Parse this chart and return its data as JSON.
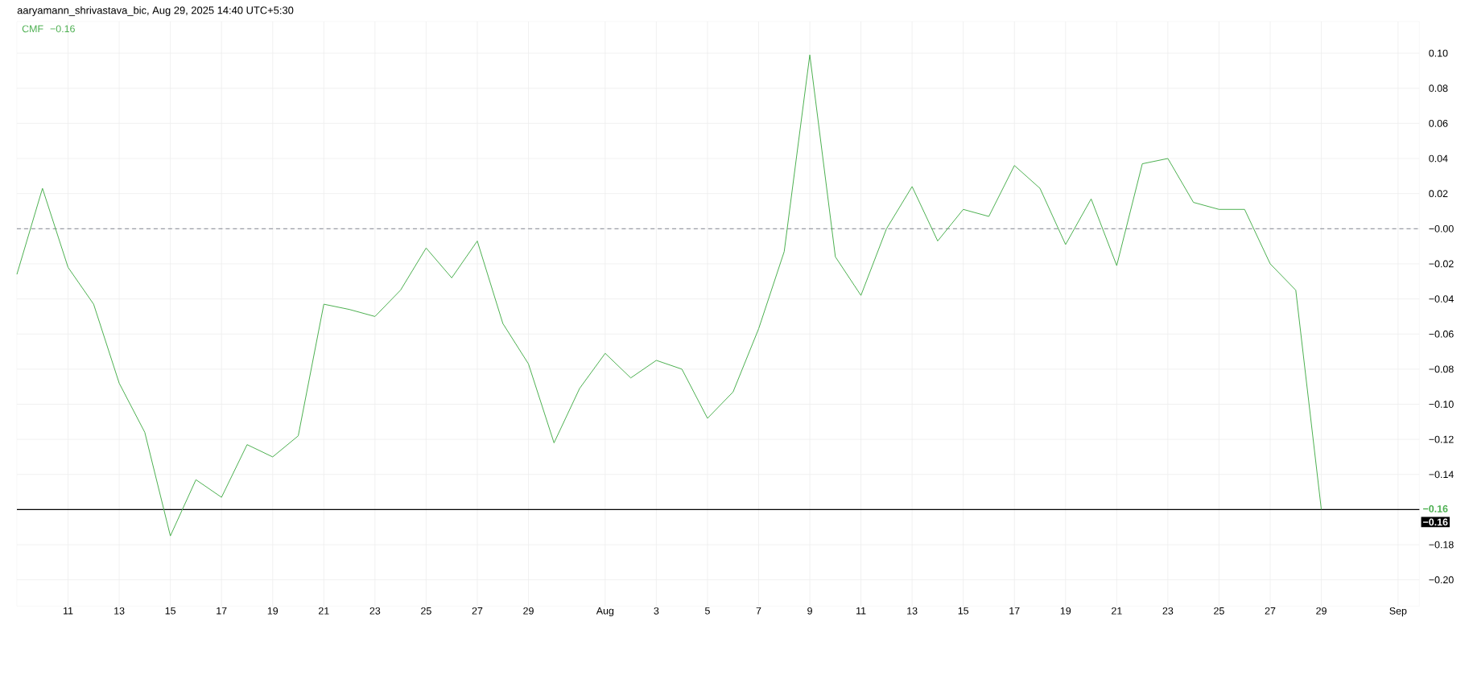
{
  "chart_data": {
    "type": "line",
    "title": "aaryamann_shrivastava_bic, Aug 29, 2025 14:40 UTC+5:30",
    "x": [
      "2025-07-09",
      "2025-07-10",
      "2025-07-11",
      "2025-07-12",
      "2025-07-13",
      "2025-07-14",
      "2025-07-15",
      "2025-07-16",
      "2025-07-17",
      "2025-07-18",
      "2025-07-19",
      "2025-07-20",
      "2025-07-21",
      "2025-07-22",
      "2025-07-23",
      "2025-07-24",
      "2025-07-25",
      "2025-07-26",
      "2025-07-27",
      "2025-07-28",
      "2025-07-29",
      "2025-07-30",
      "2025-07-31",
      "2025-08-01",
      "2025-08-02",
      "2025-08-03",
      "2025-08-04",
      "2025-08-05",
      "2025-08-06",
      "2025-08-07",
      "2025-08-08",
      "2025-08-09",
      "2025-08-10",
      "2025-08-11",
      "2025-08-12",
      "2025-08-13",
      "2025-08-14",
      "2025-08-15",
      "2025-08-16",
      "2025-08-17",
      "2025-08-18",
      "2025-08-19",
      "2025-08-20",
      "2025-08-21",
      "2025-08-22",
      "2025-08-23",
      "2025-08-24",
      "2025-08-25",
      "2025-08-26",
      "2025-08-27",
      "2025-08-28",
      "2025-08-29"
    ],
    "series": [
      {
        "name": "CMF",
        "color": "#4caf50",
        "values": [
          -0.026,
          0.023,
          -0.022,
          -0.043,
          -0.088,
          -0.116,
          -0.175,
          -0.143,
          -0.153,
          -0.123,
          -0.13,
          -0.118,
          -0.043,
          -0.046,
          -0.05,
          -0.035,
          -0.011,
          -0.028,
          -0.007,
          -0.054,
          -0.077,
          -0.122,
          -0.091,
          -0.071,
          -0.085,
          -0.075,
          -0.08,
          -0.108,
          -0.093,
          -0.057,
          -0.013,
          0.099,
          -0.016,
          -0.038,
          0.0,
          0.024,
          -0.007,
          0.011,
          0.007,
          0.036,
          0.023,
          -0.009,
          0.017,
          -0.021,
          0.037,
          0.04,
          0.015,
          0.011,
          0.011,
          -0.02,
          -0.035,
          -0.16
        ]
      }
    ],
    "xlim": [
      "2025-07-09",
      "2025-09-01T20:00"
    ],
    "ylim": [
      -0.215,
      0.118
    ],
    "xticks": [
      {
        "value": "2025-07-11",
        "label": "11"
      },
      {
        "value": "2025-07-13",
        "label": "13"
      },
      {
        "value": "2025-07-15",
        "label": "15"
      },
      {
        "value": "2025-07-17",
        "label": "17"
      },
      {
        "value": "2025-07-19",
        "label": "19"
      },
      {
        "value": "2025-07-21",
        "label": "21"
      },
      {
        "value": "2025-07-23",
        "label": "23"
      },
      {
        "value": "2025-07-25",
        "label": "25"
      },
      {
        "value": "2025-07-27",
        "label": "27"
      },
      {
        "value": "2025-07-29",
        "label": "29"
      },
      {
        "value": "2025-08-01",
        "label": "Aug"
      },
      {
        "value": "2025-08-03",
        "label": "3"
      },
      {
        "value": "2025-08-05",
        "label": "5"
      },
      {
        "value": "2025-08-07",
        "label": "7"
      },
      {
        "value": "2025-08-09",
        "label": "9"
      },
      {
        "value": "2025-08-11",
        "label": "11"
      },
      {
        "value": "2025-08-13",
        "label": "13"
      },
      {
        "value": "2025-08-15",
        "label": "15"
      },
      {
        "value": "2025-08-17",
        "label": "17"
      },
      {
        "value": "2025-08-19",
        "label": "19"
      },
      {
        "value": "2025-08-21",
        "label": "21"
      },
      {
        "value": "2025-08-23",
        "label": "23"
      },
      {
        "value": "2025-08-25",
        "label": "25"
      },
      {
        "value": "2025-08-27",
        "label": "27"
      },
      {
        "value": "2025-08-29",
        "label": "29"
      },
      {
        "value": "2025-09-01",
        "label": "Sep"
      }
    ],
    "yticks": [
      {
        "value": 0.1,
        "label": "0.10"
      },
      {
        "value": 0.08,
        "label": "0.08"
      },
      {
        "value": 0.06,
        "label": "0.06"
      },
      {
        "value": 0.04,
        "label": "0.04"
      },
      {
        "value": 0.02,
        "label": "0.02"
      },
      {
        "value": 0,
        "label": "−0.00"
      },
      {
        "value": -0.02,
        "label": "−0.02"
      },
      {
        "value": -0.04,
        "label": "−0.04"
      },
      {
        "value": -0.06,
        "label": "−0.06"
      },
      {
        "value": -0.08,
        "label": "−0.08"
      },
      {
        "value": -0.1,
        "label": "−0.10"
      },
      {
        "value": -0.12,
        "label": "−0.12"
      },
      {
        "value": -0.14,
        "label": "−0.14"
      },
      {
        "value": -0.18,
        "label": "−0.18"
      },
      {
        "value": -0.2,
        "label": "−0.20"
      }
    ],
    "grid": true,
    "legend": "top left",
    "ref_lines": [
      {
        "axis": "y",
        "value": 0,
        "color": "#787b86",
        "line_style": "dashed"
      },
      {
        "axis": "y",
        "value": -0.16,
        "label": "−0.16",
        "color": "#000000",
        "line_style": "solid"
      }
    ],
    "annotations": [
      "−0.16",
      "−0.16"
    ]
  }
}
